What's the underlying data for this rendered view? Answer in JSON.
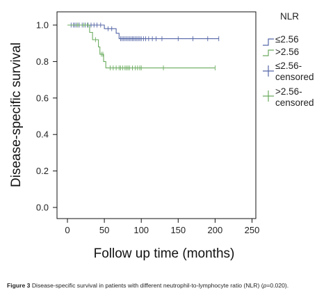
{
  "caption": {
    "label": "Figure 3",
    "text": "Disease-specific survival in patients with different neutrophil-to-lymphocyte ratio (NLR) (",
    "p_symbol": "p",
    "p_value": "=0.020)."
  },
  "chart_data": {
    "type": "line",
    "xlabel": "Follow up time (months)",
    "ylabel": "Disease-specific survival",
    "xlim": [
      0,
      250
    ],
    "ylim": [
      0,
      1.0
    ],
    "x_ticks": [
      "0",
      "50",
      "100",
      "150",
      "200",
      "250"
    ],
    "y_ticks": [
      "0.0",
      "0.2",
      "0.4",
      "0.6",
      "0.8",
      "1.0"
    ],
    "grid": false,
    "legend": {
      "title": "NLR",
      "placement": "right",
      "entries": [
        "≤2.56",
        ">2.56",
        "≤2.56-censored",
        ">2.56-censored"
      ]
    },
    "series": [
      {
        "name": "≤2.56",
        "color": "#5566a6",
        "steps": [
          [
            0,
            1.0
          ],
          [
            50,
            0.98
          ],
          [
            66,
            0.955
          ],
          [
            70,
            0.925
          ],
          [
            205,
            0.925
          ]
        ],
        "censored_x": [
          5,
          8,
          10,
          12,
          14,
          16,
          20,
          24,
          28,
          32,
          36,
          40,
          45,
          55,
          60,
          72,
          74,
          76,
          78,
          80,
          82,
          84,
          86,
          88,
          90,
          92,
          94,
          96,
          98,
          100,
          103,
          106,
          110,
          115,
          120,
          128,
          150,
          170,
          190,
          205
        ]
      },
      {
        "name": ">2.56",
        "color": "#6aab5e",
        "steps": [
          [
            0,
            1.0
          ],
          [
            30,
            0.96
          ],
          [
            34,
            0.92
          ],
          [
            42,
            0.88
          ],
          [
            44,
            0.84
          ],
          [
            49,
            0.8
          ],
          [
            52,
            0.765
          ],
          [
            200,
            0.765
          ]
        ],
        "censored_x": [
          14,
          22,
          27,
          38,
          46,
          48,
          58,
          62,
          66,
          70,
          72,
          75,
          78,
          80,
          82,
          84,
          88,
          92,
          95,
          98,
          100,
          130,
          200
        ]
      }
    ]
  }
}
